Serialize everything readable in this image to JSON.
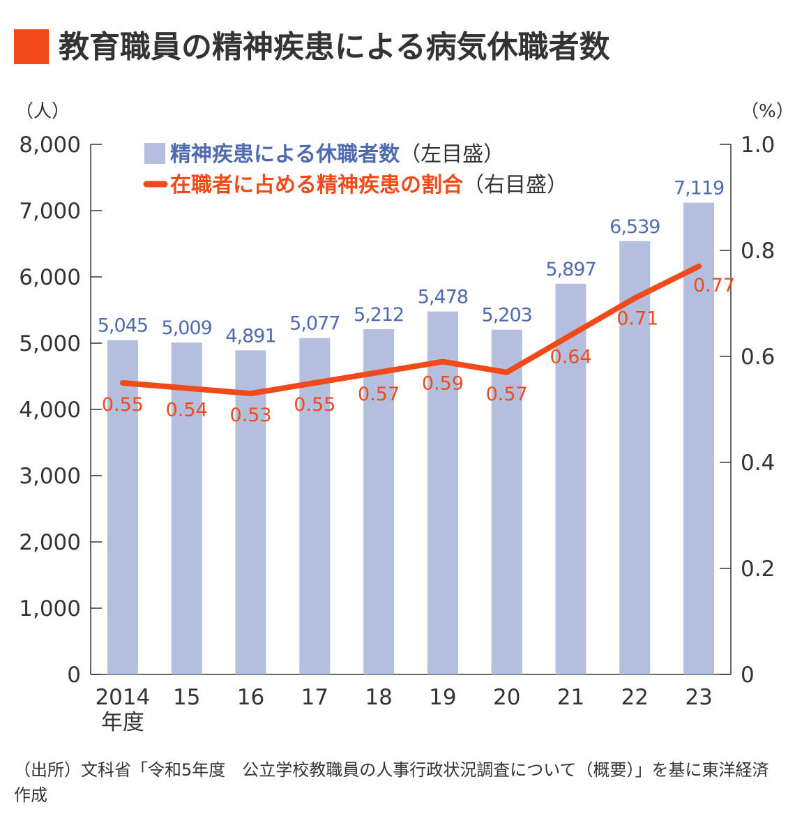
{
  "title": "教育職員の精神疾患による病気休職者数",
  "source_note": "（出所）文科省「令和5年度　公立学校教職員の人事行政状況調査について（概要）」を基に東洋経済作成",
  "colors": {
    "accent": "#f04a1a",
    "bar": "#b4bedd",
    "bar_label": "#4f6aae",
    "line": "#f04a1a",
    "axis": "#333333"
  },
  "chart_data": {
    "type": "bar",
    "title": "教育職員の精神疾患による病気休職者数",
    "categories": [
      "2014",
      "15",
      "16",
      "17",
      "18",
      "19",
      "20",
      "21",
      "22",
      "23"
    ],
    "x_first_sublabel": "年度",
    "y_left": {
      "unit_label": "（人）",
      "range": [
        0,
        8000
      ],
      "ticks": [
        "0",
        "1,000",
        "2,000",
        "3,000",
        "4,000",
        "5,000",
        "6,000",
        "7,000",
        "8,000"
      ]
    },
    "y_right": {
      "unit_label": "（%）",
      "range": [
        0,
        1.0
      ],
      "ticks": [
        "0",
        "0.2",
        "0.4",
        "0.6",
        "0.8",
        "1.0"
      ]
    },
    "series": [
      {
        "name": "精神疾患による休職者数",
        "axis_note": "（左目盛）",
        "type": "bar",
        "values": [
          5045,
          5009,
          4891,
          5077,
          5212,
          5478,
          5203,
          5897,
          6539,
          7119
        ],
        "labels": [
          "5,045",
          "5,009",
          "4,891",
          "5,077",
          "5,212",
          "5,478",
          "5,203",
          "5,897",
          "6,539",
          "7,119"
        ]
      },
      {
        "name": "在職者に占める精神疾患の割合",
        "axis_note": "（右目盛）",
        "type": "line",
        "values": [
          0.55,
          0.54,
          0.53,
          0.55,
          0.57,
          0.59,
          0.57,
          0.64,
          0.71,
          0.77
        ],
        "labels": [
          "0.55",
          "0.54",
          "0.53",
          "0.55",
          "0.57",
          "0.59",
          "0.57",
          "0.64",
          "0.71",
          "0.77"
        ]
      }
    ],
    "legend_position": "top-left",
    "grid": false
  }
}
